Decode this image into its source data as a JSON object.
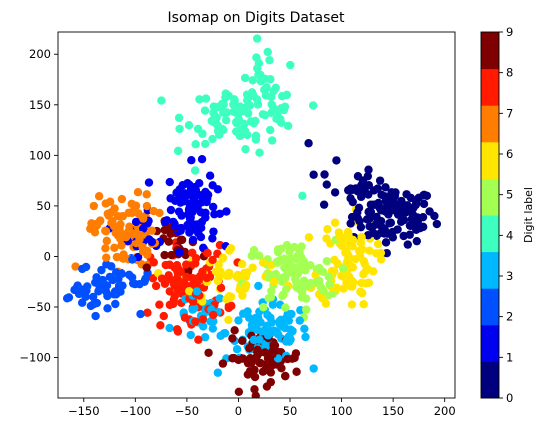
{
  "chart_data": {
    "type": "scatter",
    "title": "Isomap on Digits Dataset",
    "xlabel": "",
    "ylabel": "",
    "xlim": [
      -175,
      210
    ],
    "ylim": [
      -140,
      222
    ],
    "xticks": [
      -150,
      -100,
      -50,
      0,
      50,
      100,
      150,
      200
    ],
    "yticks": [
      -100,
      -50,
      0,
      50,
      100,
      150,
      200
    ],
    "grid": false,
    "point_color_by": "digit",
    "colorbar": {
      "label": "Digit label",
      "range": [
        0,
        9
      ],
      "ticks": [
        0,
        1,
        2,
        3,
        4,
        5,
        6,
        7,
        8,
        9
      ],
      "colors": [
        "#00007f",
        "#0000f1",
        "#004dff",
        "#00b1ff",
        "#29ffce",
        "#7dff7a",
        "#ceff29",
        "#ffc400",
        "#ff6800",
        "#f10800",
        "#7f0000"
      ]
    },
    "clusters": [
      {
        "digit": 0,
        "center": [
          150,
          40
        ],
        "spread": [
          20,
          14
        ],
        "count": 110
      },
      {
        "digit": 0,
        "center": [
          105,
          68
        ],
        "spread": [
          14,
          12
        ],
        "count": 20
      },
      {
        "digit": 1,
        "center": [
          -45,
          50
        ],
        "spread": [
          12,
          20
        ],
        "count": 95
      },
      {
        "digit": 1,
        "center": [
          -90,
          25
        ],
        "spread": [
          12,
          12
        ],
        "count": 20
      },
      {
        "digit": 2,
        "center": [
          -120,
          -25
        ],
        "spread": [
          18,
          10
        ],
        "count": 45
      },
      {
        "digit": 2,
        "center": [
          -150,
          -40
        ],
        "spread": [
          10,
          5
        ],
        "count": 15
      },
      {
        "digit": 3,
        "center": [
          28,
          -75
        ],
        "spread": [
          20,
          14
        ],
        "count": 90
      },
      {
        "digit": 3,
        "center": [
          -35,
          -60
        ],
        "spread": [
          12,
          12
        ],
        "count": 30
      },
      {
        "digit": 4,
        "center": [
          5,
          140
        ],
        "spread": [
          28,
          14
        ],
        "count": 95
      },
      {
        "digit": 4,
        "center": [
          25,
          175
        ],
        "spread": [
          8,
          18
        ],
        "count": 20
      },
      {
        "digit": 5,
        "center": [
          50,
          -20
        ],
        "spread": [
          22,
          18
        ],
        "count": 95
      },
      {
        "digit": 6,
        "center": [
          -5,
          -20
        ],
        "spread": [
          25,
          15
        ],
        "count": 50
      },
      {
        "digit": 6,
        "center": [
          105,
          -5
        ],
        "spread": [
          14,
          22
        ],
        "count": 90
      },
      {
        "digit": 7,
        "center": [
          -110,
          25
        ],
        "spread": [
          15,
          18
        ],
        "count": 95
      },
      {
        "digit": 8,
        "center": [
          -48,
          -30
        ],
        "spread": [
          18,
          20
        ],
        "count": 110
      },
      {
        "digit": 9,
        "center": [
          25,
          -100
        ],
        "spread": [
          18,
          12
        ],
        "count": 80
      },
      {
        "digit": 9,
        "center": [
          -55,
          10
        ],
        "spread": [
          12,
          12
        ],
        "count": 25
      }
    ],
    "outliers": [
      {
        "digit": 0,
        "point": [
          68,
          112
        ]
      },
      {
        "digit": 0,
        "point": [
          95,
          95
        ]
      },
      {
        "digit": 0,
        "point": [
          190,
          40
        ]
      },
      {
        "digit": 4,
        "point": [
          62,
          60
        ]
      },
      {
        "digit": 4,
        "point": [
          -42,
          85
        ]
      },
      {
        "digit": 2,
        "point": [
          -95,
          -57
        ]
      },
      {
        "digit": 7,
        "point": [
          -158,
          -10
        ]
      },
      {
        "digit": 3,
        "point": [
          -20,
          -115
        ]
      },
      {
        "digit": 1,
        "point": [
          -60,
          63
        ]
      }
    ]
  }
}
